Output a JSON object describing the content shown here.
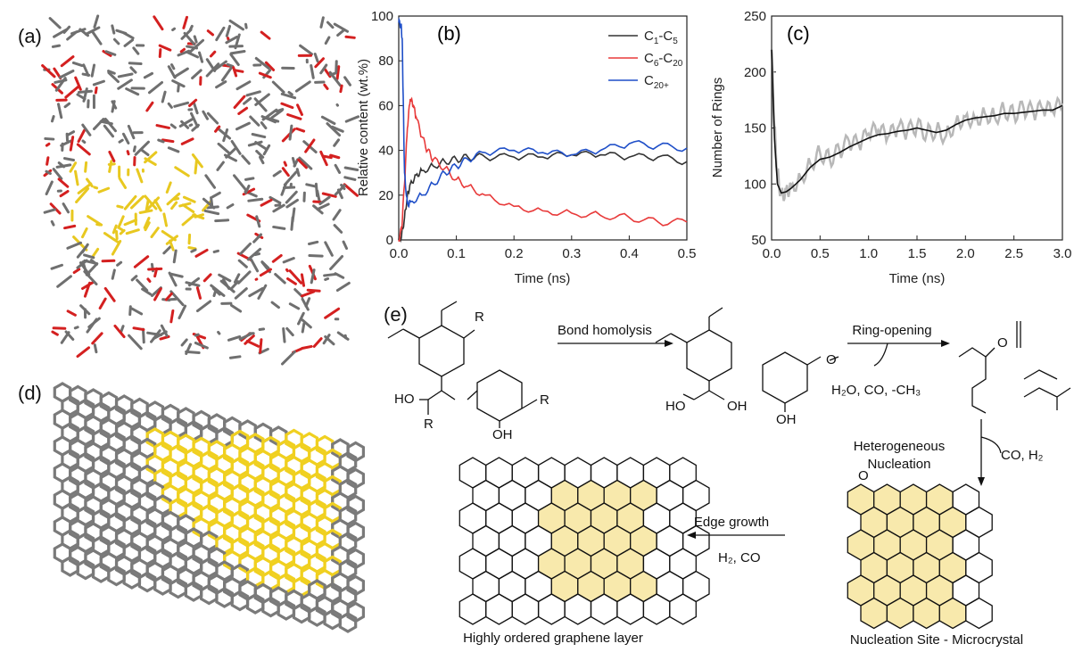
{
  "panels": {
    "a": "(a)",
    "b": "(b)",
    "c": "(c)",
    "d": "(d)",
    "e": "(e)"
  },
  "colors": {
    "gray": "#6f6f6f",
    "red_atom": "#d42020",
    "yellow": "#f0d020",
    "series_black": "#333333",
    "series_red": "#e83a3a",
    "series_blue": "#1f4fc8",
    "hex_fill": "#f8e9ac"
  },
  "chart_data": [
    {
      "id": "b",
      "type": "line",
      "xlabel": "Time (ns)",
      "ylabel": "Relative content (wt.%)",
      "xlim": [
        0,
        0.5
      ],
      "ylim": [
        0,
        100
      ],
      "xticks": [
        "0.0",
        "0.1",
        "0.2",
        "0.3",
        "0.4",
        "0.5"
      ],
      "yticks": [
        "0",
        "20",
        "40",
        "60",
        "80",
        "100"
      ],
      "legend_position": "top-right",
      "series": [
        {
          "name": "C1-C5",
          "legend_main": "C",
          "legend_sub": "1",
          "legend_mid": "-C",
          "legend_sub2": "5",
          "color": "#333333",
          "x": [
            0,
            0.005,
            0.01,
            0.015,
            0.02,
            0.03,
            0.04,
            0.06,
            0.08,
            0.1,
            0.12,
            0.15,
            0.2,
            0.25,
            0.3,
            0.35,
            0.4,
            0.45,
            0.5
          ],
          "y": [
            0,
            2,
            10,
            20,
            25,
            29,
            31,
            33,
            35,
            36,
            37,
            37,
            37,
            37,
            38,
            38,
            37,
            37,
            35
          ]
        },
        {
          "name": "C6-C20",
          "legend_main": "C",
          "legend_sub": "6",
          "legend_mid": "-C",
          "legend_sub2": "20",
          "color": "#e83a3a",
          "x": [
            0,
            0.005,
            0.01,
            0.015,
            0.02,
            0.025,
            0.03,
            0.04,
            0.05,
            0.06,
            0.08,
            0.1,
            0.12,
            0.15,
            0.2,
            0.25,
            0.3,
            0.35,
            0.4,
            0.45,
            0.5
          ],
          "y": [
            0,
            5,
            25,
            50,
            63,
            60,
            55,
            46,
            40,
            36,
            32,
            27,
            24,
            20,
            15,
            13,
            12,
            11,
            10,
            8,
            8
          ]
        },
        {
          "name": "C20+",
          "legend_main": "C",
          "legend_sub": "20+",
          "legend_mid": "",
          "legend_sub2": "",
          "color": "#1f4fc8",
          "x": [
            0,
            0.004,
            0.006,
            0.008,
            0.01,
            0.015,
            0.02,
            0.04,
            0.06,
            0.08,
            0.1,
            0.12,
            0.15,
            0.2,
            0.25,
            0.3,
            0.35,
            0.4,
            0.45,
            0.5
          ],
          "y": [
            97,
            96,
            90,
            60,
            30,
            16,
            17,
            20,
            25,
            30,
            33,
            36,
            39,
            40,
            39,
            38,
            40,
            43,
            42,
            41
          ]
        }
      ]
    },
    {
      "id": "c",
      "type": "line",
      "xlabel": "Time (ns)",
      "ylabel": "Number of Rings",
      "xlim": [
        0,
        3.0
      ],
      "ylim": [
        50,
        250
      ],
      "xticks": [
        "0.0",
        "0.5",
        "1.0",
        "1.5",
        "2.0",
        "2.5",
        "3.0"
      ],
      "yticks": [
        "50",
        "100",
        "150",
        "200",
        "250"
      ],
      "series": [
        {
          "name": "raw",
          "color": "#b8b8b8",
          "x": [
            0,
            0.03,
            0.06,
            0.1,
            0.15,
            0.2,
            0.3,
            0.4,
            0.5,
            0.6,
            0.7,
            0.8,
            0.9,
            1.0,
            1.1,
            1.2,
            1.3,
            1.4,
            1.5,
            1.6,
            1.7,
            1.8,
            1.9,
            2.0,
            2.1,
            2.2,
            2.3,
            2.4,
            2.5,
            2.6,
            2.7,
            2.8,
            2.9,
            3.0
          ],
          "y": [
            220,
            150,
            110,
            90,
            95,
            98,
            105,
            118,
            128,
            122,
            130,
            138,
            135,
            145,
            148,
            142,
            150,
            147,
            152,
            145,
            148,
            143,
            155,
            160,
            158,
            163,
            160,
            166,
            162,
            168,
            164,
            167,
            165,
            172
          ]
        },
        {
          "name": "smoothed",
          "color": "#111111",
          "x": [
            0,
            0.03,
            0.06,
            0.1,
            0.15,
            0.2,
            0.3,
            0.4,
            0.5,
            0.6,
            0.7,
            0.8,
            0.9,
            1.0,
            1.1,
            1.2,
            1.3,
            1.4,
            1.5,
            1.6,
            1.7,
            1.8,
            1.9,
            2.0,
            2.1,
            2.2,
            2.3,
            2.4,
            2.5,
            2.6,
            2.7,
            2.8,
            2.9,
            3.0
          ],
          "y": [
            220,
            140,
            100,
            92,
            93,
            96,
            104,
            115,
            122,
            124,
            128,
            133,
            137,
            141,
            144,
            145,
            147,
            148,
            150,
            148,
            146,
            148,
            153,
            157,
            159,
            160,
            161,
            163,
            163,
            164,
            165,
            166,
            166,
            170
          ]
        }
      ]
    }
  ],
  "scheme": {
    "bond_homolysis": "Bond homolysis",
    "ring_opening": "Ring-opening",
    "ring_byproducts": "H₂O, CO, -CH₃",
    "heterogeneous": "Heterogeneous",
    "nucleation": "Nucleation",
    "co_h2": "CO, H₂",
    "edge_growth": "Edge growth",
    "h2_co": "H₂, CO",
    "graphene_caption": "Highly ordered graphene layer",
    "nucleation_caption": "Nucleation Site - Microcrystal",
    "atom_O": "O",
    "atom_R": "R",
    "atom_HO": "HO",
    "atom_OH": "OH"
  }
}
